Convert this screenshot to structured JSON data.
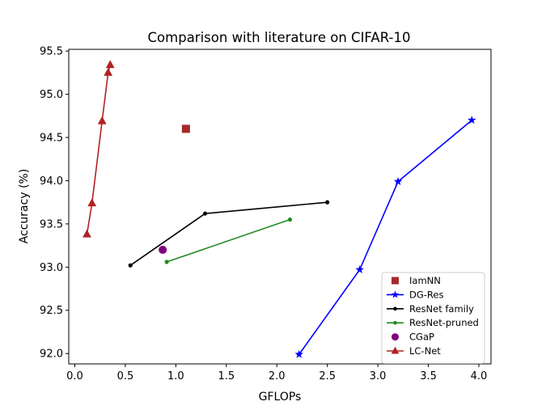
{
  "chart_data": {
    "type": "line",
    "title": "Comparison with literature on CIFAR-10",
    "xlabel": "GFLOPs",
    "ylabel": "Accuracy (%)",
    "xlim": [
      -0.06,
      4.12
    ],
    "ylim": [
      91.88,
      95.52
    ],
    "xticks": [
      {
        "value": 0.0,
        "label": "0.0"
      },
      {
        "value": 0.5,
        "label": "0.5"
      },
      {
        "value": 1.0,
        "label": "1.0"
      },
      {
        "value": 1.5,
        "label": "1.5"
      },
      {
        "value": 2.0,
        "label": "2.0"
      },
      {
        "value": 2.5,
        "label": "2.5"
      },
      {
        "value": 3.0,
        "label": "3.0"
      },
      {
        "value": 3.5,
        "label": "3.5"
      },
      {
        "value": 4.0,
        "label": "4.0"
      }
    ],
    "yticks": [
      {
        "value": 92.0,
        "label": "92.0"
      },
      {
        "value": 92.5,
        "label": "92.5"
      },
      {
        "value": 93.0,
        "label": "93.0"
      },
      {
        "value": 93.5,
        "label": "93.5"
      },
      {
        "value": 94.0,
        "label": "94.0"
      },
      {
        "value": 94.5,
        "label": "94.5"
      },
      {
        "value": 95.0,
        "label": "95.0"
      },
      {
        "value": 95.5,
        "label": "95.5"
      }
    ],
    "grid": false,
    "legend_position": "bottom-right",
    "series": [
      {
        "name": "IamNN",
        "color": "#a52a2a",
        "marker": "square",
        "line": false,
        "points": [
          {
            "x": 1.1,
            "y": 94.6
          }
        ]
      },
      {
        "name": "DG-Res",
        "color": "#0000ff",
        "marker": "star",
        "line": true,
        "points": [
          {
            "x": 2.22,
            "y": 91.99
          },
          {
            "x": 2.82,
            "y": 92.97
          },
          {
            "x": 3.2,
            "y": 93.99
          },
          {
            "x": 3.93,
            "y": 94.7
          }
        ]
      },
      {
        "name": "ResNet family",
        "color": "#000000",
        "marker": "dot",
        "line": true,
        "points": [
          {
            "x": 0.55,
            "y": 93.02
          },
          {
            "x": 1.29,
            "y": 93.62
          },
          {
            "x": 2.5,
            "y": 93.75
          }
        ]
      },
      {
        "name": "ResNet-pruned",
        "color": "#228b22",
        "marker": "dot",
        "line": true,
        "points": [
          {
            "x": 0.91,
            "y": 93.06
          },
          {
            "x": 2.13,
            "y": 93.55
          }
        ]
      },
      {
        "name": "CGaP",
        "color": "#800080",
        "marker": "circle",
        "line": false,
        "points": [
          {
            "x": 0.87,
            "y": 93.2
          }
        ]
      },
      {
        "name": "LC-Net",
        "color": "#b22222",
        "marker": "triangle",
        "line": true,
        "points": [
          {
            "x": 0.12,
            "y": 93.38
          },
          {
            "x": 0.17,
            "y": 93.74
          },
          {
            "x": 0.27,
            "y": 94.69
          },
          {
            "x": 0.33,
            "y": 95.25
          },
          {
            "x": 0.35,
            "y": 95.34
          }
        ]
      }
    ]
  }
}
